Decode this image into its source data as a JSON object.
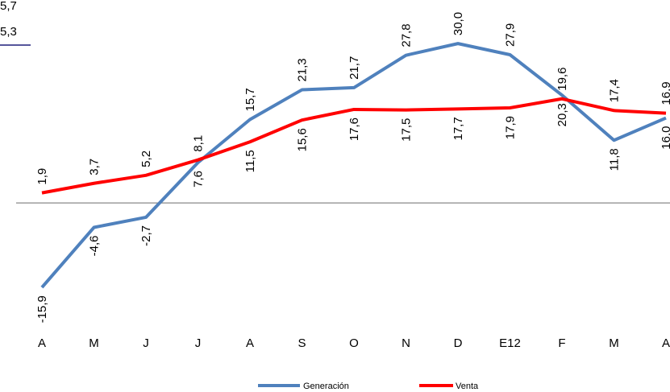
{
  "chart_data": {
    "type": "line",
    "annotations": [
      "5,7",
      "5,3"
    ],
    "categories": [
      "A",
      "M",
      "J",
      "J",
      "A",
      "S",
      "O",
      "N",
      "D",
      "E12",
      "F",
      "M",
      "A"
    ],
    "series": [
      {
        "name": "Generación",
        "color": "#4f81bd",
        "values": [
          -15.9,
          -4.6,
          -2.7,
          7.6,
          15.7,
          21.3,
          21.7,
          27.8,
          30.0,
          27.9,
          20.3,
          11.8,
          16.0
        ],
        "value_labels": [
          "-15,9",
          "-4,6",
          "-2,7",
          "7,6",
          "15,7",
          "21,3",
          "21,7",
          "27,8",
          "30,0",
          "27,9",
          "20,3",
          "11,8",
          "16,0"
        ]
      },
      {
        "name": "Venta",
        "color": "#ff0000",
        "values": [
          1.9,
          3.7,
          5.2,
          8.1,
          11.5,
          15.6,
          17.6,
          17.5,
          17.7,
          17.9,
          19.6,
          17.4,
          16.9
        ],
        "value_labels": [
          "1,9",
          "3,7",
          "5,2",
          "8,1",
          "11,5",
          "15,6",
          "17,6",
          "17,5",
          "17,7",
          "17,9",
          "19,6",
          "17,4",
          "16,9"
        ]
      }
    ],
    "ylim": [
      -22.4,
      38.2
    ]
  }
}
